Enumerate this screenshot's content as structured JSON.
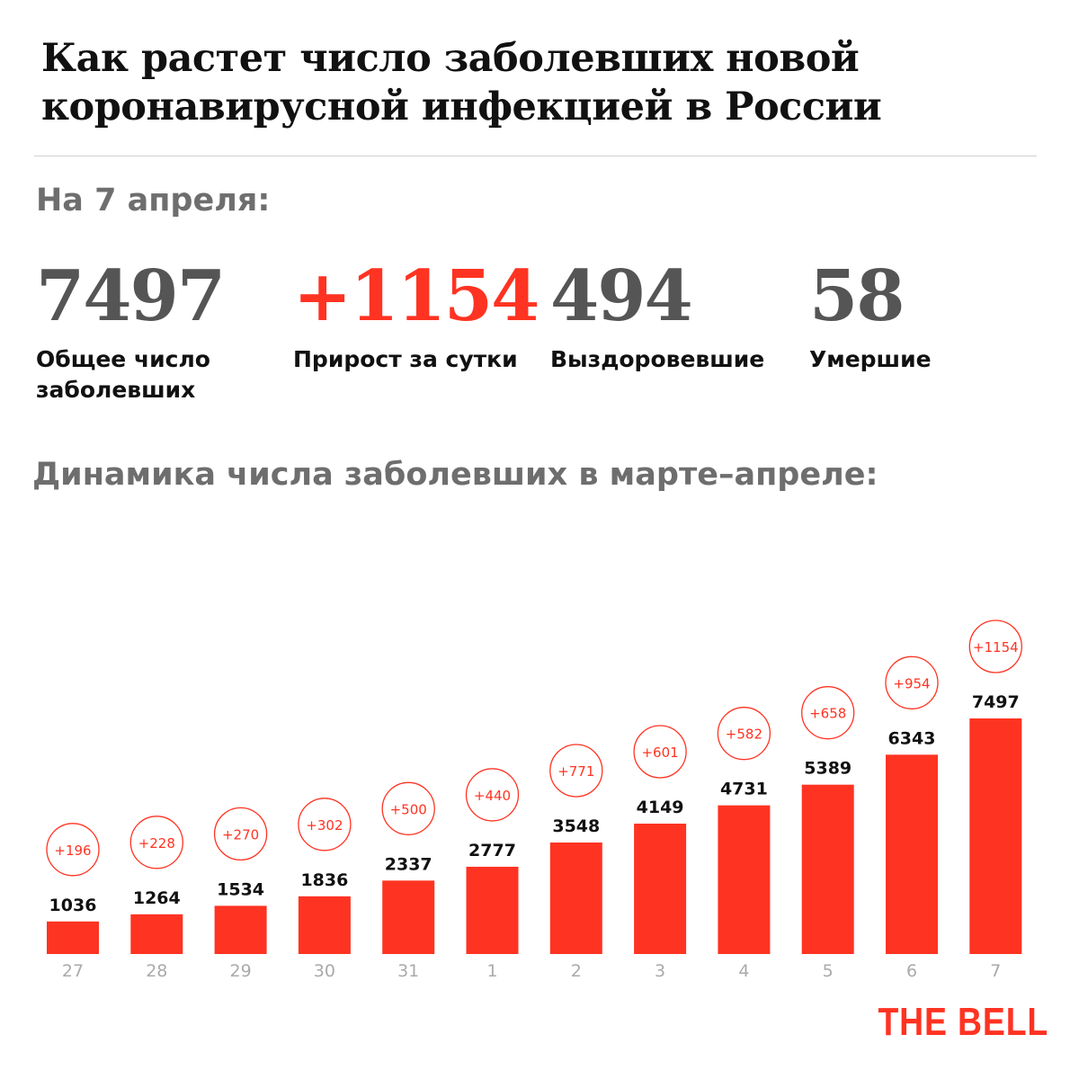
{
  "title": "Как растет число заболевших новой коронавирусной инфекцией в России",
  "as_of": "На 7 апреля:",
  "stats": [
    {
      "value": "7497",
      "label": "Общее число заболевших"
    },
    {
      "value": "+1154",
      "label": "Прирост за сутки"
    },
    {
      "value": "494",
      "label": "Выздоровевшие"
    },
    {
      "value": "58",
      "label": "Умершие"
    }
  ],
  "subtitle": "Динамика числа заболевших в марте–апреле:",
  "logo": "THE BELL",
  "colors": {
    "accent": "#ff3322",
    "stat_gray": "#555555",
    "axis_label": "#aaaaaa"
  },
  "chart_data": {
    "type": "bar",
    "categories": [
      "27",
      "28",
      "29",
      "30",
      "31",
      "1",
      "2",
      "3",
      "4",
      "5",
      "6",
      "7"
    ],
    "values": [
      1036,
      1264,
      1534,
      1836,
      2337,
      2777,
      3548,
      4149,
      4731,
      5389,
      6343,
      7497
    ],
    "annotations": [
      "+196",
      "+228",
      "+270",
      "+302",
      "+500",
      "+440",
      "+771",
      "+601",
      "+582",
      "+658",
      "+954",
      "+1154"
    ],
    "ylim": [
      0,
      7497
    ],
    "grid": false
  }
}
